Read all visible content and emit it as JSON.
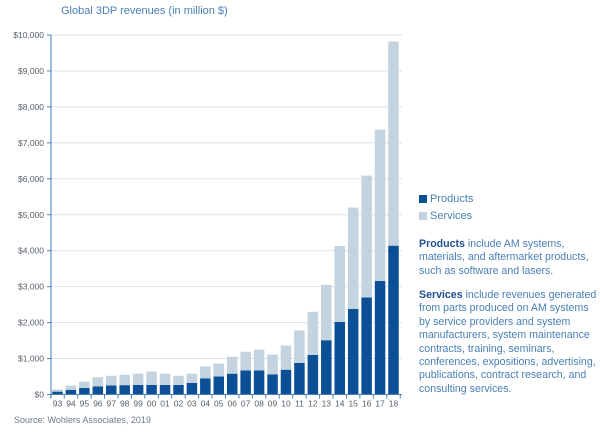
{
  "chart_data": {
    "type": "bar",
    "stacked": true,
    "title": "Global 3DP revenues (in million $)",
    "xlabel": "",
    "ylabel": "",
    "ylim": [
      0,
      10000
    ],
    "yticks": [
      0,
      1000,
      2000,
      3000,
      4000,
      5000,
      6000,
      7000,
      8000,
      9000,
      10000
    ],
    "ytick_labels": [
      "$0",
      "$1,000",
      "$2,000",
      "$3,000",
      "$4,000",
      "$5,000",
      "$6,000",
      "$7,000",
      "$8,000",
      "$9,000",
      "$10,000"
    ],
    "grid": true,
    "legend_position": "right",
    "categories": [
      "93",
      "94",
      "95",
      "96",
      "97",
      "98",
      "99",
      "00",
      "01",
      "02",
      "03",
      "04",
      "05",
      "06",
      "07",
      "08",
      "09",
      "10",
      "11",
      "12",
      "13",
      "14",
      "15",
      "16",
      "17",
      "18"
    ],
    "series": [
      {
        "name": "Products",
        "color": "#0b4f96",
        "values": [
          80,
          130,
          180,
          225,
          250,
          260,
          265,
          265,
          265,
          265,
          320,
          450,
          500,
          580,
          670,
          670,
          560,
          690,
          880,
          1100,
          1510,
          2020,
          2380,
          2700,
          3160,
          4140
        ]
      },
      {
        "name": "Services",
        "color": "#c3d3df",
        "values": [
          60,
          120,
          180,
          255,
          270,
          290,
          315,
          375,
          315,
          255,
          260,
          330,
          360,
          470,
          520,
          580,
          550,
          670,
          900,
          1200,
          1540,
          2110,
          2820,
          3390,
          4210,
          5680
        ]
      }
    ],
    "totals": [
      140,
      250,
      360,
      480,
      520,
      550,
      580,
      640,
      580,
      520,
      580,
      780,
      860,
      1050,
      1190,
      1250,
      1110,
      1360,
      1780,
      2300,
      3050,
      4130,
      5200,
      6090,
      7370,
      9820
    ]
  },
  "legend": {
    "items": [
      {
        "label": "Products",
        "color": "#0b4f96"
      },
      {
        "label": "Services",
        "color": "#c3d3df"
      }
    ]
  },
  "notes": {
    "products_term": "Products",
    "products_text": " include AM systems, materials, and aftermarket products, such as software and lasers.",
    "services_term": "Services",
    "services_text": " include revenues generated from parts produced on AM systems by service providers and system manufacturers, system maintenance contracts, training, seminars, conferences, expositions, advertising, publications, contract research, and consulting services."
  },
  "source": "Source: Wohlers Associates, 2019",
  "colors": {
    "title": "#4a7fb5",
    "axis": "#4a7fb5",
    "grid": "#d6e4ef",
    "tick_label": "#555f6a"
  }
}
